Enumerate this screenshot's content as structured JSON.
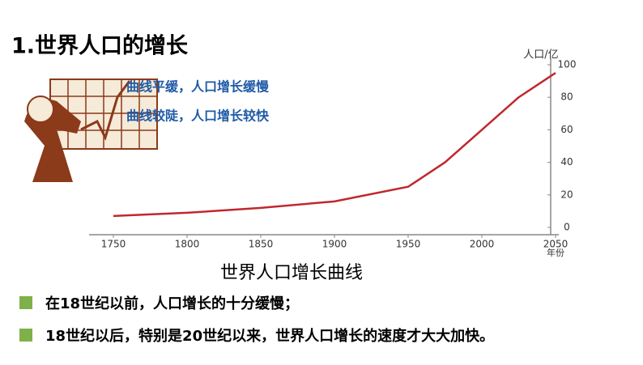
{
  "title": "1.世界人口的增长",
  "annotations": [
    "曲线平缓，人口增长缓慢",
    "曲线较陡，人口增长较快"
  ],
  "bullets": [
    "在18世纪以前，人口增长的十分缓慢；",
    "18世纪以后，特别是20世纪以来，世界人口增长的速度才大大加快。"
  ],
  "chart_data": {
    "type": "line",
    "title": "世界人口增长曲线",
    "y_label": "人口/亿",
    "x_label": "年份",
    "x": [
      1750,
      1800,
      1850,
      1900,
      1950,
      1975,
      2000,
      2025,
      2050
    ],
    "values": [
      7,
      9,
      12,
      16,
      25,
      40,
      60,
      80,
      95
    ],
    "color": "#c0282d",
    "xlim": [
      1750,
      2050
    ],
    "xticks": [
      1750,
      1800,
      1850,
      1900,
      1950,
      2000,
      2050
    ],
    "ylim": [
      0,
      100
    ],
    "yticks": [
      0,
      20,
      40,
      60,
      80,
      100
    ]
  }
}
